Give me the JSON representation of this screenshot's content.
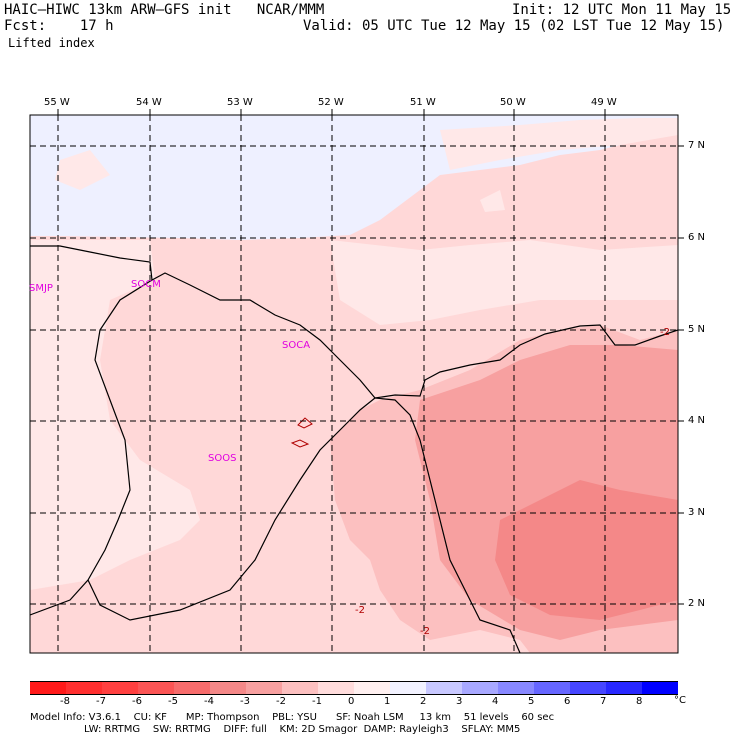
{
  "header": {
    "title": "HAIC–HIWC 13km ARW–GFS init   NCAR/MMM",
    "init": "Init: 12 UTC Mon 11 May 15",
    "fcst": "Fcst:    17 h",
    "valid": "Valid: 05 UTC Tue 12 May 15 (02 LST Tue 12 May 15)",
    "field": "Lifted index"
  },
  "map": {
    "lon_labels": [
      "55 W",
      "54 W",
      "53 W",
      "52 W",
      "51 W",
      "50 W",
      "49 W"
    ],
    "lat_labels": [
      "7 N",
      "6 N",
      "5 N",
      "4 N",
      "3 N",
      "2 N"
    ],
    "stations": [
      "SMJP",
      "SOCM",
      "SOCA",
      "SOOS"
    ],
    "contour_labels": [
      "-2",
      "-2",
      "-2"
    ],
    "colors": {
      "c_m3_m2": "#fcc0c0",
      "c_m2_m1": "#ffd8d8",
      "c_m1_0": "#ffe8e8",
      "c_0_1": "#eef0ff",
      "c_m4_m3": "#f7a0a0",
      "c_m5_m4": "#f48888"
    }
  },
  "colorbar": {
    "ticks": [
      "-8",
      "-7",
      "-6",
      "-5",
      "-4",
      "-3",
      "-2",
      "-1",
      "0",
      "1",
      "2",
      "3",
      "4",
      "5",
      "6",
      "7",
      "8"
    ],
    "unit": "°C",
    "colors": [
      "#ff1a1a",
      "#ff2f2f",
      "#ff4040",
      "#fb5555",
      "#f76c6c",
      "#f48888",
      "#f7a0a0",
      "#fcc0c0",
      "#ffdcdc",
      "#fff0f0",
      "#f2f2ff",
      "#c8c8ff",
      "#a8a8ff",
      "#8888ff",
      "#6666ff",
      "#4646ff",
      "#2828ff",
      "#0000ff"
    ]
  },
  "footer": {
    "line1": "Model Info: V3.6.1    CU: KF      MP: Thompson    PBL: YSU      SF: Noah LSM     13 km    51 levels    60 sec",
    "line2": "LW: RRTMG    SW: RRTMG    DIFF: full    KM: 2D Smagor  DAMP: Rayleigh3    SFLAY: MM5"
  }
}
